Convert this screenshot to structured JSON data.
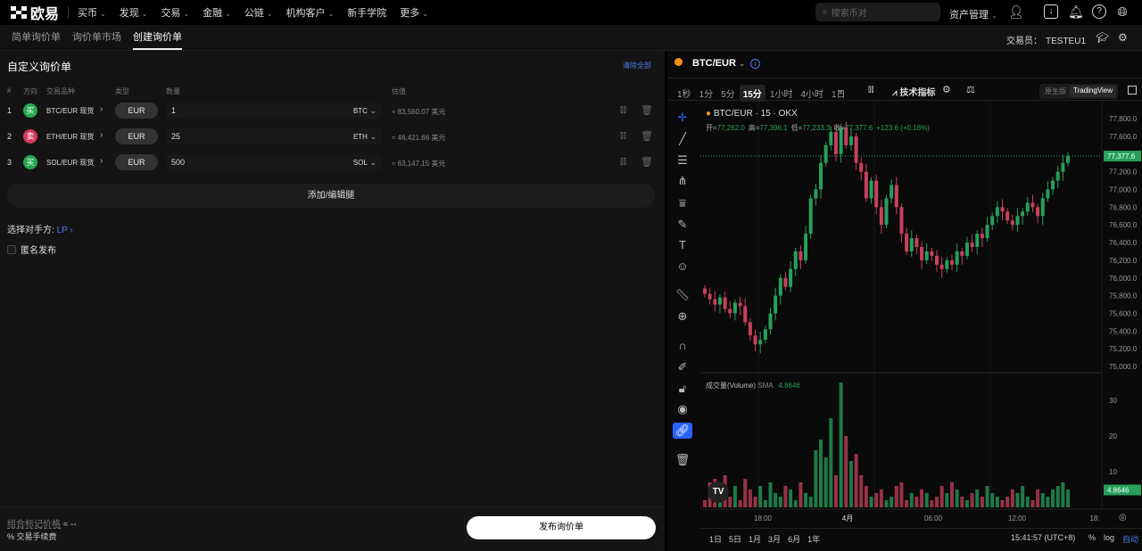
{
  "nav": {
    "brand": "欧易",
    "items": [
      {
        "label": "买币",
        "dd": true
      },
      {
        "label": "发现",
        "dd": true
      },
      {
        "label": "交易",
        "dd": true
      },
      {
        "label": "金融",
        "dd": true
      },
      {
        "label": "公链",
        "dd": true
      },
      {
        "label": "机构客户",
        "dd": true
      },
      {
        "label": "新手学院",
        "dd": false
      },
      {
        "label": "更多",
        "dd": true
      }
    ],
    "search_placeholder": "搜索币对",
    "assets": "资产管理"
  },
  "subnav": {
    "tabs": [
      "简单询价单",
      "询价单市场",
      "创建询价单"
    ],
    "active": 2,
    "trader_label": "交易员：",
    "trader": "TESTEU1"
  },
  "form": {
    "title": "自定义询价单",
    "clear": "清除全部",
    "headers": [
      "#",
      "方向",
      "交易品种",
      "类型",
      "数量",
      "估值"
    ],
    "legs": [
      {
        "n": "1",
        "side": "买",
        "side_color": "#25a750",
        "instrument": "BTC/EUR 现货",
        "type": "EUR",
        "qty": "1",
        "unit": "BTC",
        "est": "≈ 83,560.07 美元"
      },
      {
        "n": "2",
        "side": "卖",
        "side_color": "#d6395a",
        "instrument": "ETH/EUR 现货",
        "type": "EUR",
        "qty": "25",
        "unit": "ETH",
        "est": "≈ 46,421.66 美元"
      },
      {
        "n": "3",
        "side": "买",
        "side_color": "#25a750",
        "instrument": "SOL/EUR 现货",
        "type": "EUR",
        "qty": "500",
        "unit": "SOL",
        "est": "≈ 63,147.15 美元"
      }
    ],
    "add_legs": "添加/编辑腿",
    "counterparty_label": "选择对手方:",
    "counterparty": "LP",
    "anonymous": "匿名发布",
    "mark_price_label": "组合标记价格",
    "mark_price": "≈ --",
    "fee_label": "交易手续费",
    "publish": "发布询价单"
  },
  "chart": {
    "symbol": "BTC/EUR",
    "timeframes": [
      "1秒",
      "1分",
      "5分",
      "15分",
      "1小时",
      "4小时",
      "1日"
    ],
    "active_tf": 3,
    "indicators": "技术指标",
    "views": [
      "原生版",
      "TradingView"
    ],
    "active_view": 1,
    "legend_title": "BTC/EUR · 15 · OKX",
    "ohlc": {
      "o_label": "开",
      "o": "77,262.0",
      "h_label": "高",
      "h": "77,396.1",
      "l_label": "低",
      "l": "77,233.3",
      "c_label": "收",
      "c": "77,377.6",
      "chg": "+123.6 (+0.16%)"
    },
    "last_price": "77,377.6",
    "price_ticks": [
      "77,800.0",
      "77,600.0",
      "77,200.0",
      "77,000.0",
      "76,800.0",
      "76,600.0",
      "76,400.0",
      "76,200.0",
      "76,000.0",
      "75,800.0",
      "75,600.0",
      "75,400.0",
      "75,200.0",
      "75,000.0"
    ],
    "volume_label": "成交量(Volume)",
    "sma_label": "SMA",
    "sma": "4.8646",
    "vol_ticks": [
      "30",
      "20",
      "10"
    ],
    "time_ticks": [
      "18:00",
      "4月",
      "06:00",
      "12:00",
      "18:"
    ],
    "ranges": [
      "1日",
      "5日",
      "1月",
      "3月",
      "6月",
      "1年"
    ],
    "clock": "15:41:57 (UTC+8)",
    "pct": "%",
    "log": "log",
    "auto": "自动",
    "up_color": "#26a05a",
    "down_color": "#c8405d"
  },
  "chart_data": {
    "type": "candlestick",
    "ylim": [
      75000,
      77900
    ],
    "vol_ylim": [
      0,
      37
    ],
    "closes": [
      75820,
      75760,
      75700,
      75780,
      75650,
      75600,
      75720,
      75680,
      75500,
      75350,
      75250,
      75300,
      75420,
      75600,
      75800,
      76000,
      75900,
      76100,
      76300,
      76200,
      76500,
      76900,
      77000,
      77300,
      77500,
      77650,
      77400,
      77700,
      77500,
      77600,
      77300,
      77200,
      76900,
      77100,
      76800,
      76600,
      76900,
      77050,
      76800,
      76500,
      76300,
      76450,
      76350,
      76200,
      76300,
      76250,
      76150,
      76100,
      76200,
      76150,
      76300,
      76250,
      76400,
      76350,
      76500,
      76450,
      76600,
      76700,
      76800,
      76750,
      76650,
      76600,
      76700,
      76750,
      76850,
      76800,
      76700,
      76900,
      77000,
      77100,
      77200,
      77300,
      77380
    ],
    "volumes": [
      2,
      7,
      8,
      5,
      9,
      3,
      6,
      2,
      8,
      5,
      3,
      6,
      2,
      7,
      4,
      3,
      6,
      5,
      2,
      7,
      4,
      3,
      16,
      19,
      14,
      25,
      9,
      35,
      20,
      13,
      15,
      9,
      6,
      3,
      4,
      5,
      2,
      3,
      6,
      7,
      2,
      4,
      3,
      5,
      4,
      2,
      3,
      6,
      4,
      7,
      5,
      3,
      2,
      4,
      5,
      3,
      6,
      4,
      3,
      2,
      3,
      5,
      4,
      6,
      3,
      2,
      5,
      4,
      3,
      5,
      6,
      7,
      5
    ]
  }
}
